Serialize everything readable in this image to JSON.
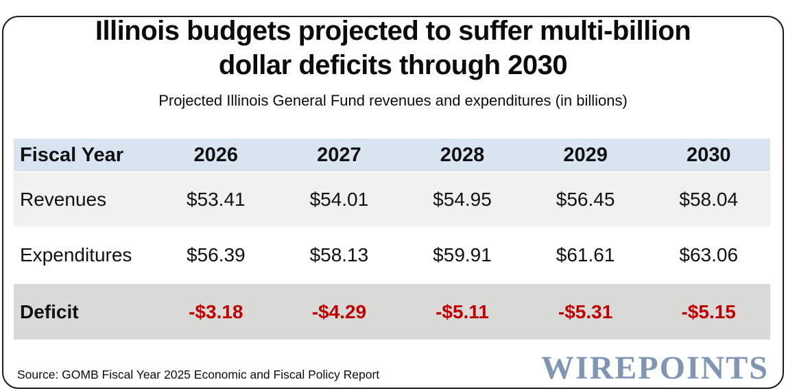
{
  "title": {
    "line1": "Illinois budgets projected to suffer multi-billion",
    "line2": "dollar deficits through 2030"
  },
  "subtitle": "Projected Illinois General Fund revenues and expenditures (in billions)",
  "source": "Source: GOMB Fiscal Year 2025 Economic and Fiscal Policy Report",
  "brand": "WIREPOINTS",
  "colors": {
    "header_row_bg": "#d8e5f1",
    "revenues_row_bg": "#f0f0ef",
    "expenditures_row_bg": "#ffffff",
    "deficit_row_bg": "#d9d9d8",
    "deficit_text": "#c00000",
    "brand_text": "#7e95b5",
    "frame_border": "#1c1c1c"
  },
  "chart_data": {
    "type": "table",
    "title": "Illinois budgets projected to suffer multi-billion dollar deficits through 2030",
    "subtitle": "Projected Illinois General Fund revenues and expenditures (in billions)",
    "columns": [
      "Fiscal Year",
      "2026",
      "2027",
      "2028",
      "2029",
      "2030"
    ],
    "rows": [
      {
        "label": "Revenues",
        "values": [
          "$53.41",
          "$54.01",
          "$54.95",
          "$56.45",
          "$58.04"
        ]
      },
      {
        "label": "Expenditures",
        "values": [
          "$56.39",
          "$58.13",
          "$59.91",
          "$61.61",
          "$63.06"
        ]
      },
      {
        "label": "Deficit",
        "values": [
          "-$3.18",
          "-$4.29",
          "-$5.11",
          "-$5.31",
          "-$5.15"
        ]
      }
    ]
  }
}
